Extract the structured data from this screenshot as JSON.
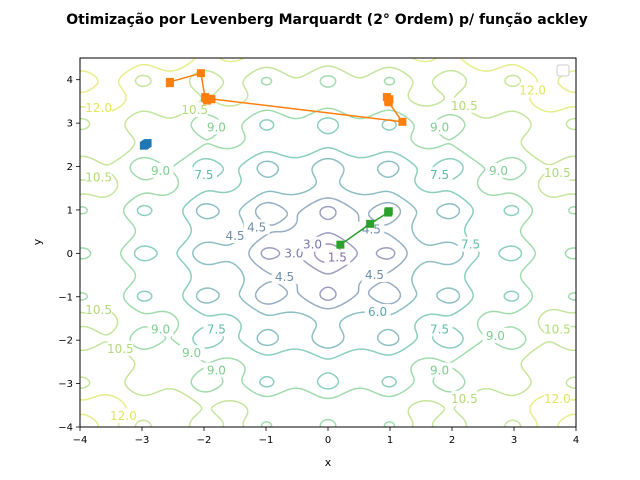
{
  "chart_data": {
    "type": "line",
    "title": "Otimização por Levenberg Marquardt (2° Ordem) p/ função ackley",
    "xlabel": "x",
    "ylabel": "y",
    "xlim": [
      -4,
      4
    ],
    "ylim": [
      -4,
      4.5
    ],
    "xticks": [
      -4,
      -3,
      -2,
      -1,
      0,
      1,
      2,
      3,
      4
    ],
    "yticks": [
      -4,
      -3,
      -2,
      -1,
      0,
      1,
      2,
      3,
      4
    ],
    "xtick_labels": [
      "−4",
      "−3",
      "−2",
      "−1",
      "0",
      "1",
      "2",
      "3",
      "4"
    ],
    "ytick_labels": [
      "−4",
      "−3",
      "−2",
      "−1",
      "0",
      "1",
      "2",
      "3",
      "4"
    ],
    "grid": false,
    "legend": "top-right",
    "contour_function": "ackley",
    "contour_levels": [
      1.5,
      3.0,
      4.5,
      6.0,
      7.5,
      9.0,
      10.5,
      12.0
    ],
    "contour_level_labels": [
      "1.5",
      "3.0",
      "4.5",
      "6.0",
      "7.5",
      "9.0",
      "10.5",
      "12.0"
    ],
    "contour_colors": [
      "#5d3c86",
      "#4b4f8c",
      "#3f6990",
      "#2f8891",
      "#2aa685",
      "#54bd6a",
      "#97cf4a",
      "#d3de29"
    ],
    "series": [
      {
        "color": "#1f77b4",
        "x": [
          -2.97,
          -2.95,
          -2.93,
          -2.91
        ],
        "y": [
          2.48,
          2.5,
          2.52,
          2.54
        ]
      },
      {
        "color": "#ff7f0e",
        "x": [
          -2.55,
          -2.55,
          -2.05,
          -1.98,
          -1.88,
          -1.98,
          -1.95,
          -1.9,
          1.2,
          0.97,
          0.95,
          0.99,
          0.98
        ],
        "y": [
          3.92,
          3.95,
          4.15,
          3.57,
          3.55,
          3.6,
          3.52,
          3.56,
          3.03,
          3.5,
          3.6,
          3.55,
          3.48
        ]
      },
      {
        "color": "#2ca02c",
        "x": [
          0.2,
          0.68,
          0.97,
          0.98
        ],
        "y": [
          0.2,
          0.68,
          0.94,
          0.97
        ]
      }
    ]
  }
}
